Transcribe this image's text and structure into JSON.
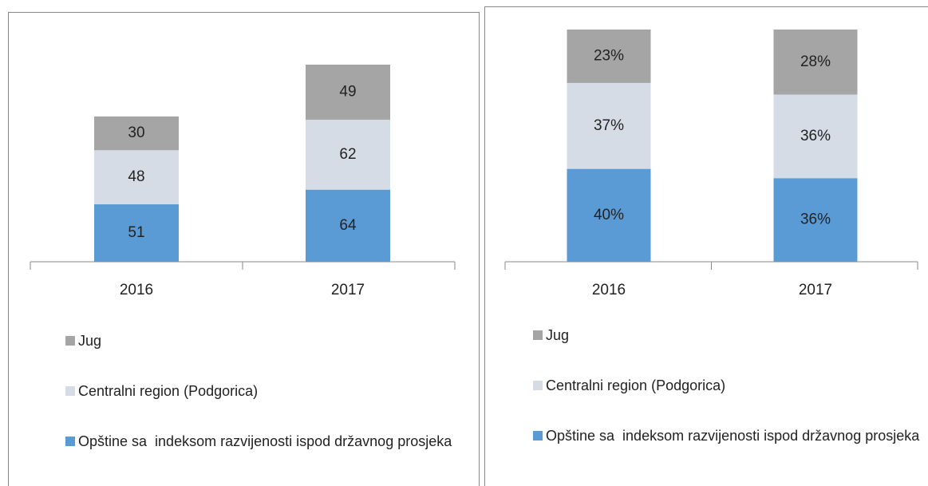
{
  "chart_data": [
    {
      "type": "bar",
      "stacked": true,
      "categories": [
        "2016",
        "2017"
      ],
      "series": [
        {
          "name": "Opštine sa  indeksom razvijenosti ispod državnog prosjeka",
          "color": "#5b9bd5",
          "values": [
            51,
            64
          ]
        },
        {
          "name": "Centralni region (Podgorica)",
          "color": "#d6dce5",
          "values": [
            48,
            62
          ]
        },
        {
          "name": "Jug",
          "color": "#a5a5a5",
          "values": [
            30,
            49
          ]
        }
      ]
    },
    {
      "type": "bar",
      "stacked": true,
      "categories": [
        "2016",
        "2017"
      ],
      "series": [
        {
          "name": "Opštine sa  indeksom razvijenosti ispod državnog prosjeka",
          "color": "#5b9bd5",
          "values": [
            40,
            36
          ],
          "value_labels": [
            "40%",
            "36%"
          ]
        },
        {
          "name": "Centralni region (Podgorica)",
          "color": "#d6dce5",
          "values": [
            37,
            36
          ],
          "value_labels": [
            "37%",
            "36%"
          ]
        },
        {
          "name": "Jug",
          "color": "#a5a5a5",
          "values": [
            23,
            28
          ],
          "value_labels": [
            "23%",
            "28%"
          ]
        }
      ]
    }
  ]
}
